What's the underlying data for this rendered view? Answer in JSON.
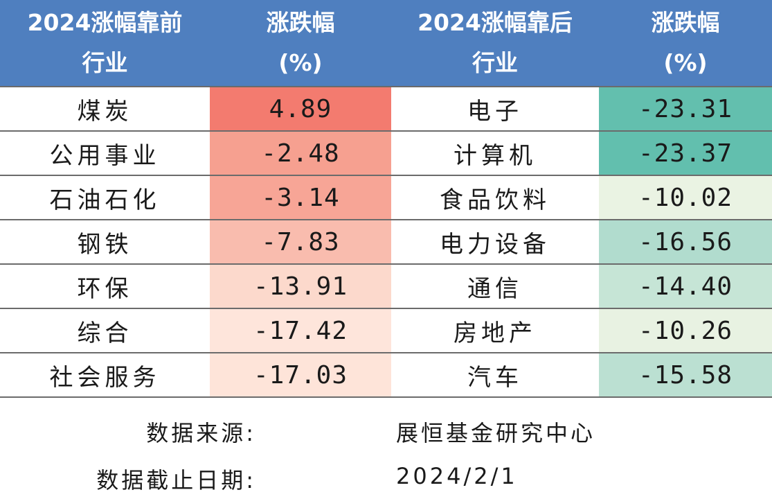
{
  "header": {
    "col1": "2024涨幅靠前\n行业",
    "col2": "涨跌幅\n(%)",
    "col3": "2024涨幅靠后\n行业",
    "col4": "涨跌幅\n(%)"
  },
  "rows": [
    {
      "top_name": "煤炭",
      "top_value": "4.89",
      "top_color": "#f37b6f",
      "bottom_name": "电子",
      "bottom_value": "-23.31",
      "bottom_color": "#63bfae"
    },
    {
      "top_name": "公用事业",
      "top_value": "-2.48",
      "top_color": "#f6a090",
      "bottom_name": "计算机",
      "bottom_value": "-23.37",
      "bottom_color": "#62bfae"
    },
    {
      "top_name": "石油石化",
      "top_value": "-3.14",
      "top_color": "#f7a596",
      "bottom_name": "食品饮料",
      "bottom_value": "-10.02",
      "bottom_color": "#eaf3e3"
    },
    {
      "top_name": "钢铁",
      "top_value": "-7.83",
      "top_color": "#f9bcae",
      "bottom_name": "电力设备",
      "bottom_value": "-16.56",
      "bottom_color": "#b1dcce"
    },
    {
      "top_name": "环保",
      "top_value": "-13.91",
      "top_color": "#fcd9cc",
      "bottom_name": "通信",
      "bottom_value": "-14.40",
      "bottom_color": "#c6e5d6"
    },
    {
      "top_name": "综合",
      "top_value": "-17.42",
      "top_color": "#fee5db",
      "bottom_name": "房地产",
      "bottom_value": "-10.26",
      "bottom_color": "#e8f2e2"
    },
    {
      "top_name": "社会服务",
      "top_value": "-17.03",
      "top_color": "#fee4d9",
      "bottom_name": "汽车",
      "bottom_value": "-15.58",
      "bottom_color": "#bbe0d2"
    }
  ],
  "footer": {
    "source_label": "数据来源:",
    "source_value": "展恒基金研究中心",
    "date_label": "数据截止日期:",
    "date_value": "2024/2/1"
  }
}
